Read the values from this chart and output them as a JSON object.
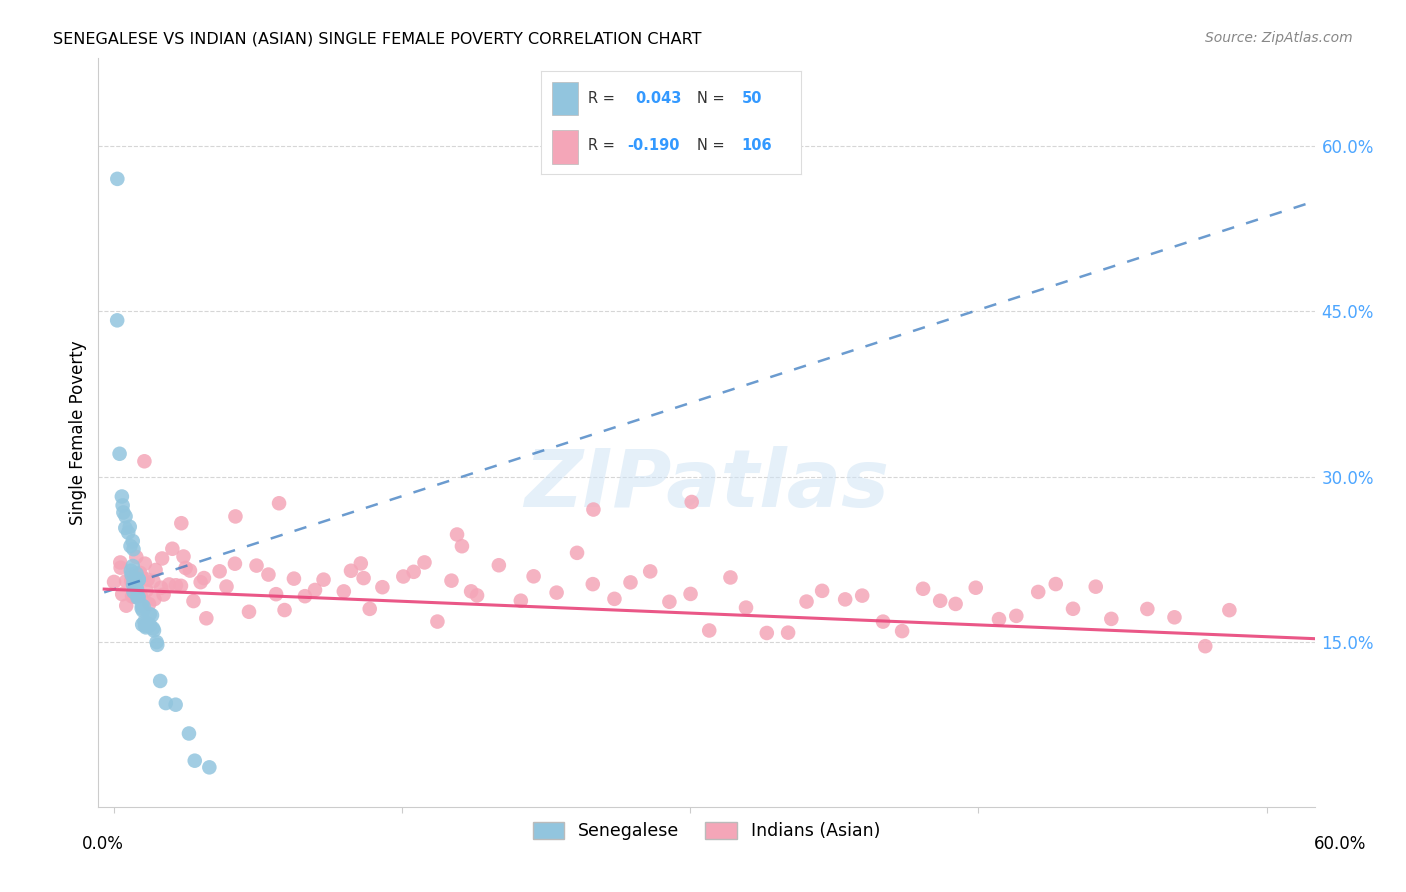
{
  "title": "SENEGALESE VS INDIAN (ASIAN) SINGLE FEMALE POVERTY CORRELATION CHART",
  "source": "Source: ZipAtlas.com",
  "ylabel": "Single Female Poverty",
  "legend_label_blue": "Senegalese",
  "legend_label_pink": "Indians (Asian)",
  "blue_color": "#92c5de",
  "pink_color": "#f4a6b8",
  "blue_line_color": "#3a7abf",
  "pink_line_color": "#e8457a",
  "right_tick_color": "#4da6ff",
  "background_color": "#ffffff",
  "grid_color": "#cccccc",
  "grid_style": "--",
  "xlim": [
    0.0,
    0.6
  ],
  "ylim": [
    0.0,
    0.68
  ],
  "right_yticks": [
    0.15,
    0.3,
    0.45,
    0.6
  ],
  "right_yticklabels": [
    "15.0%",
    "30.0%",
    "45.0%",
    "60.0%"
  ],
  "senegalese_x": [
    0.001,
    0.002,
    0.003,
    0.004,
    0.005,
    0.005,
    0.006,
    0.007,
    0.007,
    0.008,
    0.009,
    0.009,
    0.01,
    0.01,
    0.01,
    0.01,
    0.01,
    0.01,
    0.011,
    0.011,
    0.011,
    0.012,
    0.012,
    0.012,
    0.013,
    0.013,
    0.013,
    0.014,
    0.014,
    0.015,
    0.015,
    0.015,
    0.016,
    0.016,
    0.017,
    0.017,
    0.018,
    0.018,
    0.019,
    0.019,
    0.02,
    0.021,
    0.022,
    0.023,
    0.025,
    0.028,
    0.032,
    0.038,
    0.042,
    0.05
  ],
  "senegalese_y": [
    0.555,
    0.44,
    0.32,
    0.28,
    0.275,
    0.27,
    0.265,
    0.26,
    0.25,
    0.245,
    0.24,
    0.23,
    0.235,
    0.228,
    0.222,
    0.218,
    0.215,
    0.21,
    0.208,
    0.205,
    0.2,
    0.2,
    0.198,
    0.195,
    0.195,
    0.192,
    0.188,
    0.185,
    0.182,
    0.18,
    0.178,
    0.175,
    0.175,
    0.172,
    0.17,
    0.168,
    0.168,
    0.165,
    0.162,
    0.16,
    0.158,
    0.155,
    0.15,
    0.148,
    0.12,
    0.095,
    0.075,
    0.06,
    0.045,
    0.04
  ],
  "indian_x": [
    0.001,
    0.003,
    0.004,
    0.005,
    0.006,
    0.007,
    0.008,
    0.009,
    0.01,
    0.01,
    0.011,
    0.012,
    0.013,
    0.014,
    0.015,
    0.016,
    0.017,
    0.018,
    0.019,
    0.02,
    0.021,
    0.022,
    0.024,
    0.025,
    0.026,
    0.028,
    0.03,
    0.032,
    0.034,
    0.036,
    0.038,
    0.04,
    0.042,
    0.045,
    0.048,
    0.05,
    0.055,
    0.06,
    0.065,
    0.07,
    0.075,
    0.08,
    0.085,
    0.09,
    0.095,
    0.1,
    0.105,
    0.11,
    0.12,
    0.125,
    0.13,
    0.135,
    0.14,
    0.15,
    0.155,
    0.16,
    0.17,
    0.175,
    0.18,
    0.185,
    0.19,
    0.2,
    0.21,
    0.22,
    0.23,
    0.24,
    0.25,
    0.26,
    0.27,
    0.28,
    0.29,
    0.3,
    0.31,
    0.32,
    0.33,
    0.34,
    0.35,
    0.36,
    0.37,
    0.38,
    0.39,
    0.4,
    0.41,
    0.42,
    0.43,
    0.44,
    0.45,
    0.46,
    0.47,
    0.48,
    0.49,
    0.5,
    0.51,
    0.52,
    0.54,
    0.55,
    0.57,
    0.58,
    0.015,
    0.035,
    0.065,
    0.085,
    0.13,
    0.18,
    0.25,
    0.3
  ],
  "indian_y": [
    0.2,
    0.21,
    0.2,
    0.22,
    0.2,
    0.21,
    0.2,
    0.21,
    0.22,
    0.2,
    0.2,
    0.21,
    0.195,
    0.2,
    0.21,
    0.195,
    0.2,
    0.21,
    0.2,
    0.215,
    0.195,
    0.2,
    0.2,
    0.215,
    0.195,
    0.21,
    0.22,
    0.2,
    0.195,
    0.21,
    0.2,
    0.22,
    0.195,
    0.2,
    0.21,
    0.2,
    0.195,
    0.2,
    0.21,
    0.195,
    0.2,
    0.22,
    0.195,
    0.2,
    0.21,
    0.195,
    0.2,
    0.2,
    0.195,
    0.2,
    0.215,
    0.195,
    0.2,
    0.2,
    0.195,
    0.21,
    0.195,
    0.2,
    0.215,
    0.195,
    0.2,
    0.215,
    0.195,
    0.2,
    0.195,
    0.21,
    0.195,
    0.2,
    0.195,
    0.2,
    0.195,
    0.2,
    0.195,
    0.195,
    0.19,
    0.19,
    0.185,
    0.19,
    0.185,
    0.19,
    0.185,
    0.185,
    0.18,
    0.185,
    0.18,
    0.185,
    0.18,
    0.185,
    0.18,
    0.18,
    0.175,
    0.18,
    0.175,
    0.18,
    0.175,
    0.175,
    0.17,
    0.175,
    0.3,
    0.26,
    0.265,
    0.255,
    0.24,
    0.27,
    0.28,
    0.295
  ]
}
